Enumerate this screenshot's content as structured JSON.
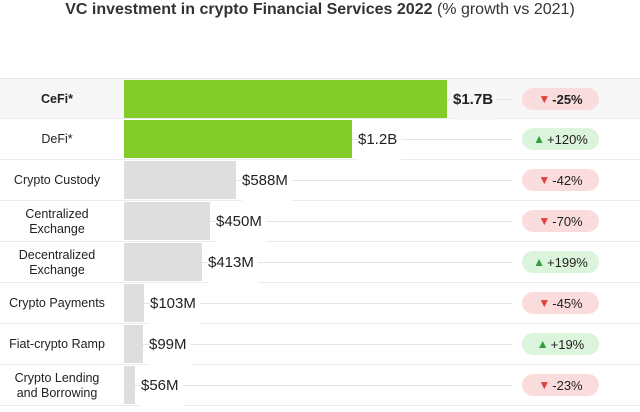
{
  "title": {
    "main": "VC investment in crypto Financial Services 2022",
    "sub": "(% growth vs 2021)"
  },
  "colors": {
    "highlight_bar": "#84cc29",
    "other_bar": "#dedede",
    "down_badge_bg": "#fbdcdc",
    "up_badge_bg": "#dcf3dc",
    "down_arrow": "#e0403c",
    "up_arrow": "#2f9e3f"
  },
  "chart_data": {
    "type": "bar",
    "orientation": "horizontal",
    "title": "VC investment in crypto Financial Services 2022",
    "subtitle": "(% growth vs 2021)",
    "categories": [
      "CeFi*",
      "DeFi*",
      "Crypto Custody",
      "Centralized\nExchange",
      "Decentralized\nExchange",
      "Crypto Payments",
      "Fiat-crypto Ramp",
      "Crypto Lending\nand Borrowing"
    ],
    "values": [
      1700,
      1200,
      588,
      450,
      413,
      103,
      99,
      56
    ],
    "units": "$M",
    "value_labels": [
      "$1.7B",
      "$1.2B",
      "$588M",
      "$450M",
      "$413M",
      "$103M",
      "$99M",
      "$56M"
    ],
    "growth_pct": [
      -25,
      120,
      -42,
      -70,
      199,
      -45,
      19,
      -23
    ],
    "growth_labels": [
      "-25%",
      "+120%",
      "-42%",
      "-70%",
      "+199%",
      "-45%",
      "+19%",
      "-23%"
    ],
    "highlighted": [
      "CeFi*",
      "DeFi*"
    ],
    "xlim": [
      0,
      1700
    ],
    "grid": false,
    "legend": "none"
  }
}
